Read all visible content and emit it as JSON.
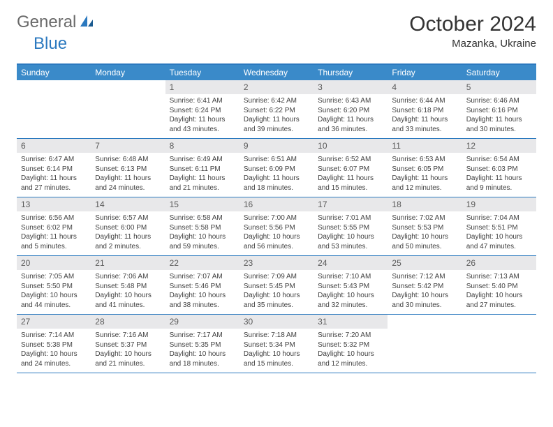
{
  "logo": {
    "general": "General",
    "blue": "Blue"
  },
  "title": "October 2024",
  "subtitle": "Mazanka, Ukraine",
  "colors": {
    "header_bar": "#3a8ac9",
    "border": "#2b79bf",
    "daynum_bg": "#e8e8ea",
    "text": "#333333",
    "logo_gray": "#6a6a6a",
    "logo_blue": "#2b79bf",
    "background": "#ffffff"
  },
  "weekdays": [
    "Sunday",
    "Monday",
    "Tuesday",
    "Wednesday",
    "Thursday",
    "Friday",
    "Saturday"
  ],
  "first_weekday_index": 2,
  "days": [
    {
      "n": "1",
      "sunrise": "6:41 AM",
      "sunset": "6:24 PM",
      "daylight": "11 hours and 43 minutes."
    },
    {
      "n": "2",
      "sunrise": "6:42 AM",
      "sunset": "6:22 PM",
      "daylight": "11 hours and 39 minutes."
    },
    {
      "n": "3",
      "sunrise": "6:43 AM",
      "sunset": "6:20 PM",
      "daylight": "11 hours and 36 minutes."
    },
    {
      "n": "4",
      "sunrise": "6:44 AM",
      "sunset": "6:18 PM",
      "daylight": "11 hours and 33 minutes."
    },
    {
      "n": "5",
      "sunrise": "6:46 AM",
      "sunset": "6:16 PM",
      "daylight": "11 hours and 30 minutes."
    },
    {
      "n": "6",
      "sunrise": "6:47 AM",
      "sunset": "6:14 PM",
      "daylight": "11 hours and 27 minutes."
    },
    {
      "n": "7",
      "sunrise": "6:48 AM",
      "sunset": "6:13 PM",
      "daylight": "11 hours and 24 minutes."
    },
    {
      "n": "8",
      "sunrise": "6:49 AM",
      "sunset": "6:11 PM",
      "daylight": "11 hours and 21 minutes."
    },
    {
      "n": "9",
      "sunrise": "6:51 AM",
      "sunset": "6:09 PM",
      "daylight": "11 hours and 18 minutes."
    },
    {
      "n": "10",
      "sunrise": "6:52 AM",
      "sunset": "6:07 PM",
      "daylight": "11 hours and 15 minutes."
    },
    {
      "n": "11",
      "sunrise": "6:53 AM",
      "sunset": "6:05 PM",
      "daylight": "11 hours and 12 minutes."
    },
    {
      "n": "12",
      "sunrise": "6:54 AM",
      "sunset": "6:03 PM",
      "daylight": "11 hours and 9 minutes."
    },
    {
      "n": "13",
      "sunrise": "6:56 AM",
      "sunset": "6:02 PM",
      "daylight": "11 hours and 5 minutes."
    },
    {
      "n": "14",
      "sunrise": "6:57 AM",
      "sunset": "6:00 PM",
      "daylight": "11 hours and 2 minutes."
    },
    {
      "n": "15",
      "sunrise": "6:58 AM",
      "sunset": "5:58 PM",
      "daylight": "10 hours and 59 minutes."
    },
    {
      "n": "16",
      "sunrise": "7:00 AM",
      "sunset": "5:56 PM",
      "daylight": "10 hours and 56 minutes."
    },
    {
      "n": "17",
      "sunrise": "7:01 AM",
      "sunset": "5:55 PM",
      "daylight": "10 hours and 53 minutes."
    },
    {
      "n": "18",
      "sunrise": "7:02 AM",
      "sunset": "5:53 PM",
      "daylight": "10 hours and 50 minutes."
    },
    {
      "n": "19",
      "sunrise": "7:04 AM",
      "sunset": "5:51 PM",
      "daylight": "10 hours and 47 minutes."
    },
    {
      "n": "20",
      "sunrise": "7:05 AM",
      "sunset": "5:50 PM",
      "daylight": "10 hours and 44 minutes."
    },
    {
      "n": "21",
      "sunrise": "7:06 AM",
      "sunset": "5:48 PM",
      "daylight": "10 hours and 41 minutes."
    },
    {
      "n": "22",
      "sunrise": "7:07 AM",
      "sunset": "5:46 PM",
      "daylight": "10 hours and 38 minutes."
    },
    {
      "n": "23",
      "sunrise": "7:09 AM",
      "sunset": "5:45 PM",
      "daylight": "10 hours and 35 minutes."
    },
    {
      "n": "24",
      "sunrise": "7:10 AM",
      "sunset": "5:43 PM",
      "daylight": "10 hours and 32 minutes."
    },
    {
      "n": "25",
      "sunrise": "7:12 AM",
      "sunset": "5:42 PM",
      "daylight": "10 hours and 30 minutes."
    },
    {
      "n": "26",
      "sunrise": "7:13 AM",
      "sunset": "5:40 PM",
      "daylight": "10 hours and 27 minutes."
    },
    {
      "n": "27",
      "sunrise": "7:14 AM",
      "sunset": "5:38 PM",
      "daylight": "10 hours and 24 minutes."
    },
    {
      "n": "28",
      "sunrise": "7:16 AM",
      "sunset": "5:37 PM",
      "daylight": "10 hours and 21 minutes."
    },
    {
      "n": "29",
      "sunrise": "7:17 AM",
      "sunset": "5:35 PM",
      "daylight": "10 hours and 18 minutes."
    },
    {
      "n": "30",
      "sunrise": "7:18 AM",
      "sunset": "5:34 PM",
      "daylight": "10 hours and 15 minutes."
    },
    {
      "n": "31",
      "sunrise": "7:20 AM",
      "sunset": "5:32 PM",
      "daylight": "10 hours and 12 minutes."
    }
  ],
  "labels": {
    "sunrise": "Sunrise:",
    "sunset": "Sunset:",
    "daylight": "Daylight:"
  }
}
